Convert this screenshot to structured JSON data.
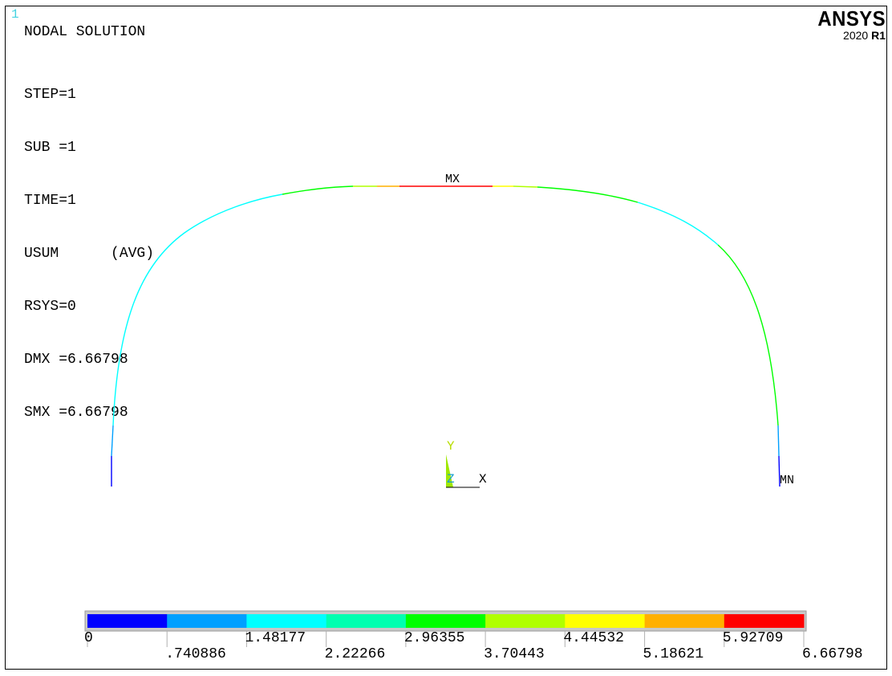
{
  "window": {
    "number": "1"
  },
  "brand": {
    "name": "ANSYS",
    "version_year": "2020",
    "version_release": "R1"
  },
  "title": "NODAL SOLUTION",
  "info": {
    "step": "STEP=1",
    "sub": "SUB =1",
    "time": "TIME=1",
    "item": "USUM      (AVG)",
    "rsys": "RSYS=0",
    "dmx": "DMX =6.66798",
    "smx": "SMX =6.66798"
  },
  "labels": {
    "max": "MX",
    "min": "MN"
  },
  "triad": {
    "y": "Y",
    "z": "Z",
    "x": "X"
  },
  "legend": {
    "colors": [
      "#0000ff",
      "#00a0ff",
      "#00ffff",
      "#00ffb0",
      "#00ff00",
      "#b0ff00",
      "#ffff00",
      "#ffb000",
      "#ff0000"
    ],
    "upper_values": [
      "0",
      "1.48177",
      "2.96355",
      "4.44532",
      "5.92709"
    ],
    "lower_values": [
      ".740886",
      "2.22266",
      "3.70443",
      "5.18621",
      "6.66798"
    ]
  }
}
